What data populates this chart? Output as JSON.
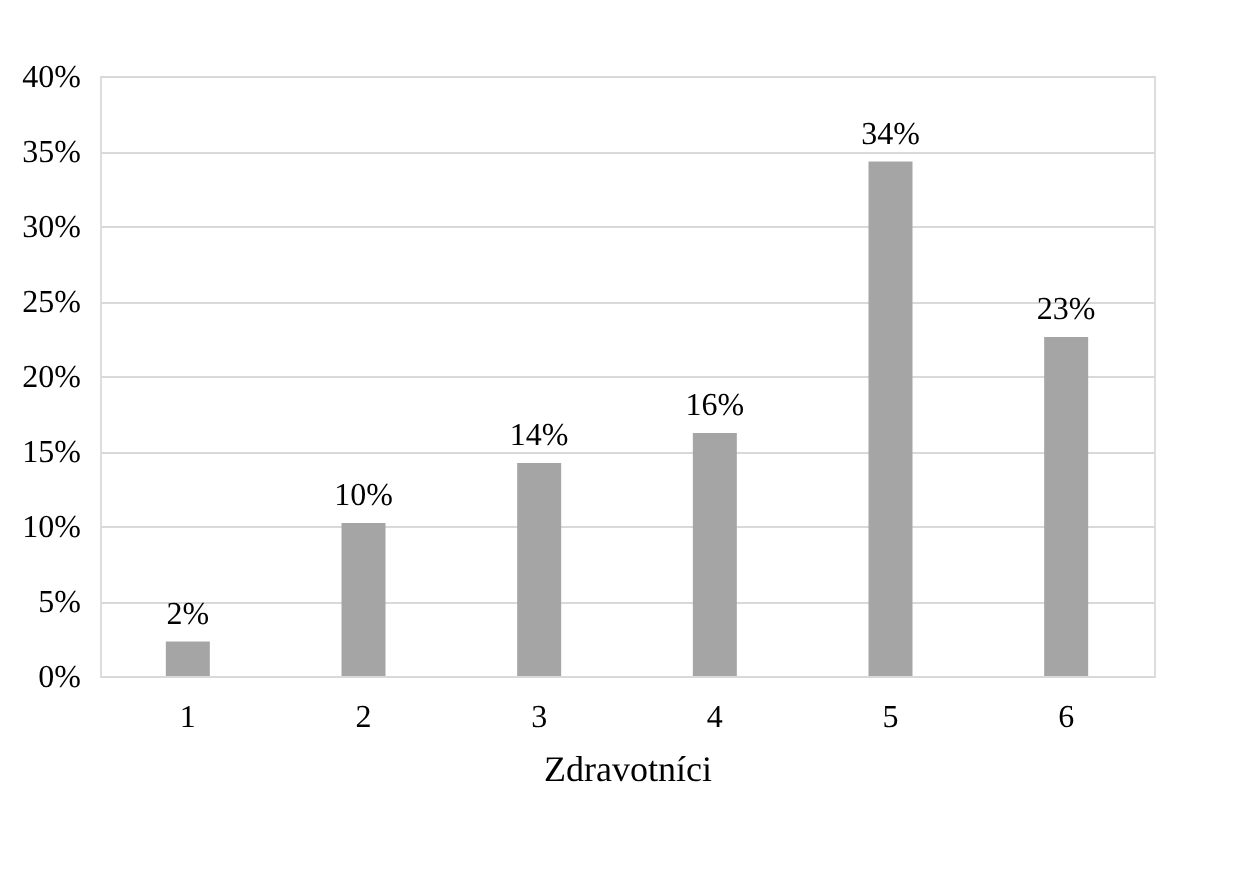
{
  "chart_data": {
    "type": "bar",
    "xlabel": "Zdravotníci",
    "categories": [
      "1",
      "2",
      "3",
      "4",
      "5",
      "6"
    ],
    "values": [
      2.3,
      10.2,
      14.2,
      16.2,
      34.3,
      22.6
    ],
    "value_labels": [
      "2%",
      "10%",
      "14%",
      "16%",
      "34%",
      "23%"
    ],
    "color": "#a5a5a5",
    "ylim": [
      0,
      40
    ],
    "yticks": [
      {
        "value": 0,
        "label": "0%"
      },
      {
        "value": 5,
        "label": "5%"
      },
      {
        "value": 10,
        "label": "10%"
      },
      {
        "value": 15,
        "label": "15%"
      },
      {
        "value": 20,
        "label": "20%"
      },
      {
        "value": 25,
        "label": "25%"
      },
      {
        "value": 30,
        "label": "30%"
      },
      {
        "value": 35,
        "label": "35%"
      },
      {
        "value": 40,
        "label": "40%"
      }
    ],
    "grid": "y"
  }
}
